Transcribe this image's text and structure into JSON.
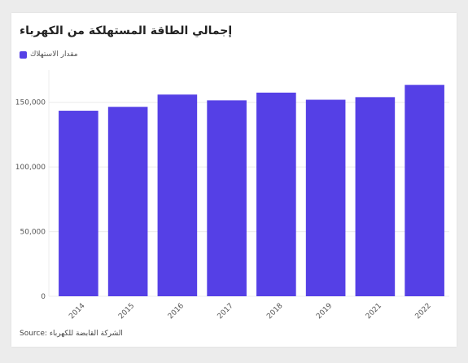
{
  "title": "إجمالي الطاقة المستهلكة من الكهرباء",
  "source_label": "Source:",
  "source_text": "الشركة القابضة للكهرباء",
  "colors": {
    "bar": "#5540e6",
    "grid": "#ececec",
    "axis_text": "#555555"
  },
  "chart_data": {
    "type": "bar",
    "title": "إجمالي الطاقة المستهلكة من الكهرباء",
    "xlabel": "",
    "ylabel": "",
    "categories": [
      "2014",
      "2015",
      "2016",
      "2017",
      "2018",
      "2019",
      "2021",
      "2022"
    ],
    "series": [
      {
        "name": "مقدار الاستهلاك",
        "values": [
          143500,
          146500,
          156000,
          151500,
          157500,
          152000,
          154000,
          163500
        ]
      }
    ],
    "ylim": [
      0,
      175000
    ],
    "yticks": [
      0,
      50000,
      100000,
      150000
    ],
    "ytick_labels": [
      "0",
      "50,000",
      "100,000",
      "150,000"
    ],
    "grid": true,
    "legend_position": "top-left"
  }
}
